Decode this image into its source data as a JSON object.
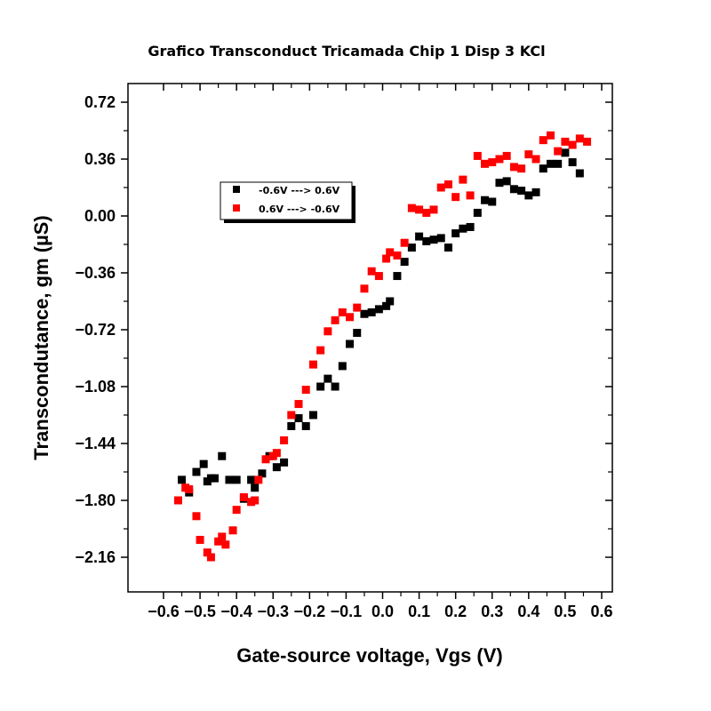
{
  "chart_data": {
    "type": "scatter",
    "title": "Grafico Transconduct Tricamada Chip 1 Disp 3 KCl",
    "xlabel": "Gate-source voltage, Vgs (V)",
    "ylabel": "Transcondutance, gm (µS)",
    "xlim": [
      -0.7,
      0.7
    ],
    "ylim": [
      -2.37,
      0.84
    ],
    "xticks": [
      -0.6,
      -0.5,
      -0.4,
      -0.3,
      -0.2,
      -0.1,
      0.0,
      0.1,
      0.2,
      0.3,
      0.4,
      0.5,
      0.6
    ],
    "xtick_labels": [
      "−0.6",
      "−0.5",
      "−0.4",
      "−0.3",
      "−0.2",
      "−0.1",
      "0.0",
      "0.1",
      "0.2",
      "0.3",
      "0.4",
      "0.5",
      "0.6"
    ],
    "yticks": [
      0.72,
      0.36,
      0.0,
      -0.36,
      -0.72,
      -1.08,
      -1.44,
      -1.8,
      -2.16
    ],
    "ytick_labels": [
      "0.72",
      "0.36",
      "0.00",
      "−0.36",
      "−0.72",
      "−1.08",
      "−1.44",
      "−1.80",
      "−2.16"
    ],
    "grid": false,
    "legend_position": "top-left",
    "series": [
      {
        "name": "-0.6V ---> 0.6V",
        "color": "#000000",
        "marker": "square",
        "x": [
          -0.55,
          -0.53,
          -0.51,
          -0.49,
          -0.48,
          -0.47,
          -0.46,
          -0.44,
          -0.42,
          -0.4,
          -0.38,
          -0.36,
          -0.35,
          -0.33,
          -0.31,
          -0.29,
          -0.27,
          -0.25,
          -0.23,
          -0.21,
          -0.19,
          -0.17,
          -0.15,
          -0.13,
          -0.11,
          -0.09,
          -0.07,
          -0.05,
          -0.03,
          -0.01,
          0.01,
          0.02,
          0.04,
          0.06,
          0.08,
          0.1,
          0.12,
          0.14,
          0.16,
          0.18,
          0.2,
          0.22,
          0.24,
          0.26,
          0.28,
          0.3,
          0.32,
          0.34,
          0.36,
          0.38,
          0.4,
          0.42,
          0.44,
          0.46,
          0.48,
          0.5,
          0.52,
          0.54
        ],
        "y": [
          -1.67,
          -1.75,
          -1.62,
          -1.57,
          -1.68,
          -1.66,
          -1.66,
          -1.52,
          -1.67,
          -1.67,
          -1.79,
          -1.67,
          -1.72,
          -1.63,
          -1.52,
          -1.59,
          -1.56,
          -1.33,
          -1.28,
          -1.33,
          -1.26,
          -1.08,
          -1.03,
          -1.08,
          -0.95,
          -0.81,
          -0.74,
          -0.62,
          -0.61,
          -0.59,
          -0.57,
          -0.54,
          -0.38,
          -0.29,
          -0.2,
          -0.13,
          -0.16,
          -0.15,
          -0.14,
          -0.2,
          -0.11,
          -0.08,
          -0.07,
          0.02,
          0.1,
          0.09,
          0.21,
          0.22,
          0.17,
          0.16,
          0.13,
          0.15,
          0.3,
          0.33,
          0.33,
          0.4,
          0.34,
          0.27
        ]
      },
      {
        "name": "0.6V ---> -0.6V",
        "color": "#ff0000",
        "marker": "square",
        "x": [
          -0.56,
          -0.54,
          -0.53,
          -0.51,
          -0.5,
          -0.48,
          -0.47,
          -0.45,
          -0.44,
          -0.43,
          -0.41,
          -0.4,
          -0.38,
          -0.36,
          -0.35,
          -0.34,
          -0.32,
          -0.3,
          -0.29,
          -0.27,
          -0.25,
          -0.23,
          -0.21,
          -0.19,
          -0.17,
          -0.15,
          -0.13,
          -0.11,
          -0.09,
          -0.07,
          -0.05,
          -0.03,
          -0.01,
          0.01,
          0.02,
          0.04,
          0.06,
          0.08,
          0.1,
          0.12,
          0.14,
          0.16,
          0.18,
          0.2,
          0.22,
          0.24,
          0.26,
          0.28,
          0.3,
          0.32,
          0.34,
          0.36,
          0.38,
          0.4,
          0.42,
          0.44,
          0.46,
          0.48,
          0.5,
          0.52,
          0.54,
          0.56
        ],
        "y": [
          -1.8,
          -1.72,
          -1.73,
          -1.9,
          -2.05,
          -2.13,
          -2.16,
          -2.06,
          -2.03,
          -2.08,
          -1.99,
          -1.86,
          -1.78,
          -1.81,
          -1.8,
          -1.67,
          -1.54,
          -1.52,
          -1.5,
          -1.42,
          -1.26,
          -1.19,
          -1.1,
          -0.94,
          -0.85,
          -0.73,
          -0.66,
          -0.61,
          -0.64,
          -0.58,
          -0.46,
          -0.35,
          -0.38,
          -0.27,
          -0.23,
          -0.25,
          -0.17,
          0.05,
          0.04,
          0.02,
          0.04,
          0.18,
          0.2,
          0.12,
          0.23,
          0.13,
          0.38,
          0.33,
          0.34,
          0.36,
          0.38,
          0.31,
          0.3,
          0.39,
          0.36,
          0.48,
          0.51,
          0.41,
          0.47,
          0.45,
          0.49,
          0.47
        ]
      }
    ]
  }
}
